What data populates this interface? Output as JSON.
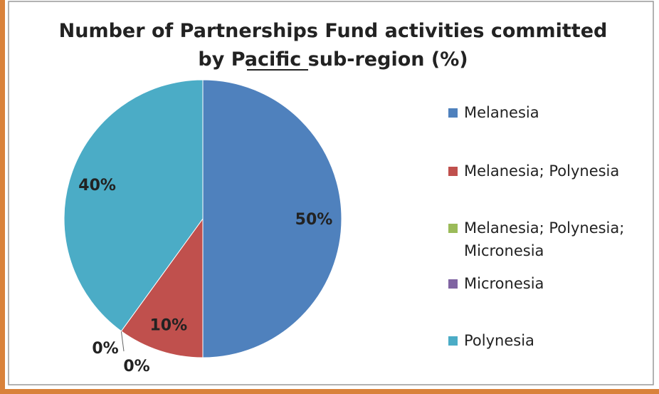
{
  "chart_data": {
    "type": "pie",
    "title": [
      "Number of Partnerships Fund activities committed",
      "by Pacific sub-region (%)"
    ],
    "categories": [
      "Melanesia",
      "Melanesia; Polynesia",
      "Melanesia; Polynesia; Micronesia",
      "Micronesia",
      "Polynesia"
    ],
    "values": [
      50,
      10,
      0,
      0,
      40
    ],
    "value_labels": [
      "50%",
      "10%",
      "0%",
      "0%",
      "40%"
    ],
    "colors": [
      "#4f81bd",
      "#c0504d",
      "#9bbb59",
      "#8064a2",
      "#4bacc6"
    ],
    "legend": "right"
  }
}
